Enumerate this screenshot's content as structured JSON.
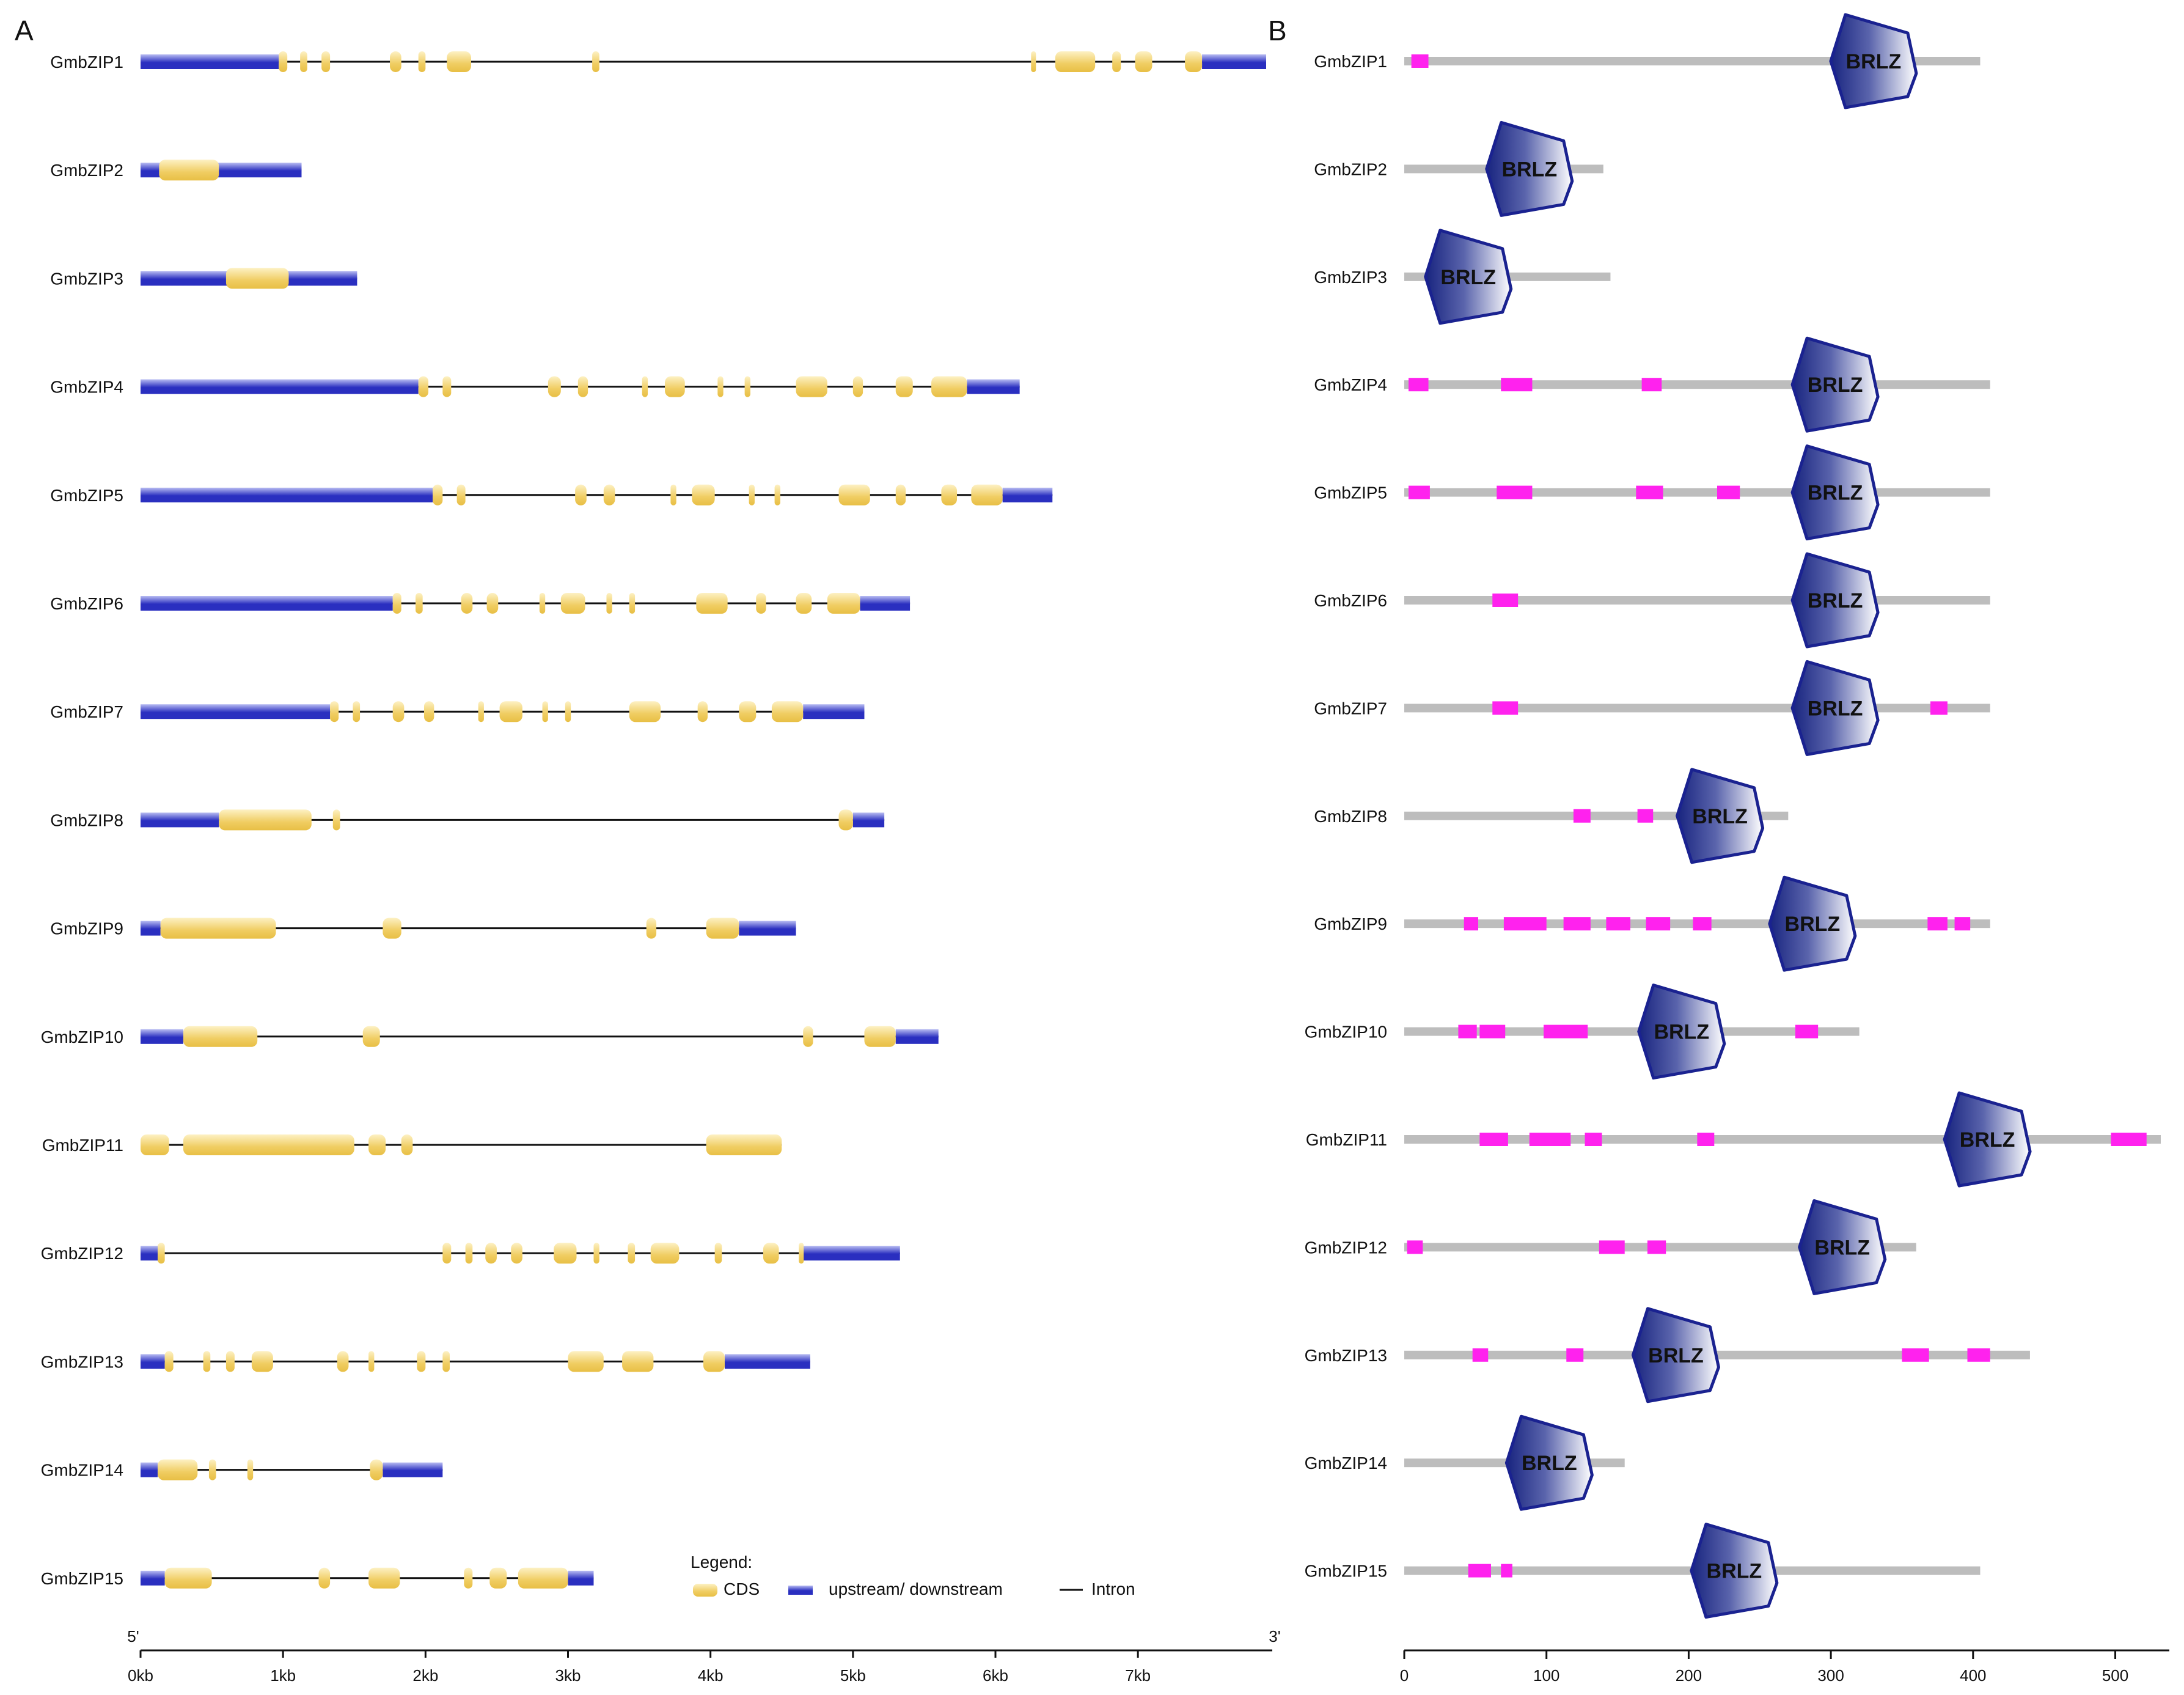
{
  "panels": {
    "a_label": "A",
    "b_label": "B"
  },
  "colors": {
    "cds": "#f0cd62",
    "utr": "#2a2fc0",
    "intron": "#111111",
    "protein_line": "#bdbdbd",
    "motif": "#ff22ee",
    "brlz_fill": "#1a2a8c",
    "brlz_edge": "#1a2290"
  },
  "panel_a": {
    "axis": {
      "five_prime": "5'",
      "three_prime": "3'",
      "range_kb": [
        0,
        7.9
      ],
      "ticks": [
        {
          "kb": 0,
          "label": "0kb"
        },
        {
          "kb": 1,
          "label": "1kb"
        },
        {
          "kb": 2,
          "label": "2kb"
        },
        {
          "kb": 3,
          "label": "3kb"
        },
        {
          "kb": 4,
          "label": "4kb"
        },
        {
          "kb": 5,
          "label": "5kb"
        },
        {
          "kb": 6,
          "label": "6kb"
        },
        {
          "kb": 7,
          "label": "7kb"
        }
      ]
    },
    "legend": {
      "title": "Legend:",
      "cds_label": "CDS",
      "utr_label": "upstream/ downstream",
      "intron_label": "Intron"
    },
    "genes": [
      {
        "name": "GmbZIP1",
        "utr": [
          [
            0,
            0.97
          ],
          [
            7.45,
            7.9
          ]
        ],
        "span": [
          0,
          7.9
        ],
        "cds": [
          [
            0.97,
            1.03
          ],
          [
            1.12,
            1.17
          ],
          [
            1.27,
            1.33
          ],
          [
            1.75,
            1.83
          ],
          [
            1.95,
            2.0
          ],
          [
            2.15,
            2.32
          ],
          [
            3.17,
            3.22
          ],
          [
            6.25,
            6.28
          ],
          [
            6.42,
            6.7
          ],
          [
            6.82,
            6.88
          ],
          [
            6.98,
            7.1
          ],
          [
            7.33,
            7.45
          ]
        ]
      },
      {
        "name": "GmbZIP2",
        "utr": [
          [
            0,
            1.13
          ]
        ],
        "span": [
          0,
          1.13
        ],
        "cds": [
          [
            0.13,
            0.55
          ]
        ]
      },
      {
        "name": "GmbZIP3",
        "utr": [
          [
            0,
            1.52
          ]
        ],
        "span": [
          0,
          1.52
        ],
        "cds": [
          [
            0.6,
            1.04
          ]
        ]
      },
      {
        "name": "GmbZIP4",
        "utr": [
          [
            0,
            1.95
          ],
          [
            5.8,
            6.17
          ]
        ],
        "span": [
          0,
          6.17
        ],
        "cds": [
          [
            1.95,
            2.02
          ],
          [
            2.12,
            2.18
          ],
          [
            2.86,
            2.95
          ],
          [
            3.07,
            3.14
          ],
          [
            3.52,
            3.56
          ],
          [
            3.68,
            3.82
          ],
          [
            4.05,
            4.09
          ],
          [
            4.24,
            4.28
          ],
          [
            4.6,
            4.82
          ],
          [
            5.0,
            5.07
          ],
          [
            5.3,
            5.42
          ],
          [
            5.55,
            5.8
          ]
        ]
      },
      {
        "name": "GmbZIP5",
        "utr": [
          [
            0,
            2.05
          ],
          [
            6.05,
            6.4
          ]
        ],
        "span": [
          0,
          6.4
        ],
        "cds": [
          [
            2.05,
            2.12
          ],
          [
            2.22,
            2.28
          ],
          [
            3.05,
            3.13
          ],
          [
            3.25,
            3.33
          ],
          [
            3.72,
            3.76
          ],
          [
            3.87,
            4.03
          ],
          [
            4.27,
            4.31
          ],
          [
            4.45,
            4.49
          ],
          [
            4.9,
            5.12
          ],
          [
            5.3,
            5.37
          ],
          [
            5.62,
            5.73
          ],
          [
            5.83,
            6.05
          ]
        ]
      },
      {
        "name": "GmbZIP6",
        "utr": [
          [
            0,
            1.77
          ],
          [
            5.05,
            5.4
          ]
        ],
        "span": [
          0,
          5.4
        ],
        "cds": [
          [
            1.77,
            1.83
          ],
          [
            1.93,
            1.98
          ],
          [
            2.25,
            2.33
          ],
          [
            2.43,
            2.51
          ],
          [
            2.8,
            2.84
          ],
          [
            2.95,
            3.12
          ],
          [
            3.27,
            3.31
          ],
          [
            3.43,
            3.47
          ],
          [
            3.9,
            4.12
          ],
          [
            4.32,
            4.39
          ],
          [
            4.6,
            4.71
          ],
          [
            4.82,
            5.05
          ]
        ]
      },
      {
        "name": "GmbZIP7",
        "utr": [
          [
            0,
            1.33
          ],
          [
            4.65,
            5.08
          ]
        ],
        "span": [
          0,
          5.08
        ],
        "cds": [
          [
            1.33,
            1.39
          ],
          [
            1.49,
            1.54
          ],
          [
            1.77,
            1.85
          ],
          [
            1.99,
            2.06
          ],
          [
            2.37,
            2.41
          ],
          [
            2.52,
            2.68
          ],
          [
            2.82,
            2.86
          ],
          [
            2.98,
            3.02
          ],
          [
            3.43,
            3.65
          ],
          [
            3.91,
            3.98
          ],
          [
            4.2,
            4.32
          ],
          [
            4.43,
            4.65
          ]
        ]
      },
      {
        "name": "GmbZIP8",
        "utr": [
          [
            0,
            0.55
          ],
          [
            5.0,
            5.22
          ]
        ],
        "span": [
          0,
          5.22
        ],
        "cds": [
          [
            0.55,
            1.2
          ],
          [
            1.35,
            1.4
          ],
          [
            4.9,
            5.0
          ]
        ]
      },
      {
        "name": "GmbZIP9",
        "utr": [
          [
            0,
            0.14
          ],
          [
            4.2,
            4.6
          ]
        ],
        "span": [
          0,
          4.6
        ],
        "cds": [
          [
            0.14,
            0.95
          ],
          [
            1.7,
            1.83
          ],
          [
            3.55,
            3.62
          ],
          [
            3.97,
            4.2
          ]
        ]
      },
      {
        "name": "GmbZIP10",
        "utr": [
          [
            0,
            0.3
          ],
          [
            5.3,
            5.6
          ]
        ],
        "span": [
          0,
          5.6
        ],
        "cds": [
          [
            0.3,
            0.82
          ],
          [
            1.56,
            1.68
          ],
          [
            4.65,
            4.72
          ],
          [
            5.08,
            5.3
          ]
        ]
      },
      {
        "name": "GmbZIP11",
        "utr": [],
        "span": [
          0,
          4.5
        ],
        "cds": [
          [
            0,
            0.2
          ],
          [
            0.3,
            1.5
          ],
          [
            1.6,
            1.72
          ],
          [
            1.83,
            1.91
          ],
          [
            3.97,
            4.5
          ]
        ]
      },
      {
        "name": "GmbZIP12",
        "utr": [
          [
            0,
            0.15
          ],
          [
            4.65,
            5.33
          ]
        ],
        "span": [
          0,
          5.33
        ],
        "cds": [
          [
            0.12,
            0.17
          ],
          [
            2.12,
            2.18
          ],
          [
            2.28,
            2.33
          ],
          [
            2.42,
            2.5
          ],
          [
            2.6,
            2.68
          ],
          [
            2.9,
            3.06
          ],
          [
            3.18,
            3.22
          ],
          [
            3.42,
            3.47
          ],
          [
            3.58,
            3.78
          ],
          [
            4.03,
            4.08
          ],
          [
            4.37,
            4.48
          ],
          [
            4.62,
            4.65
          ]
        ]
      },
      {
        "name": "GmbZIP13",
        "utr": [
          [
            0,
            0.17
          ],
          [
            4.1,
            4.7
          ]
        ],
        "span": [
          0,
          4.7
        ],
        "cds": [
          [
            0.17,
            0.23
          ],
          [
            0.44,
            0.49
          ],
          [
            0.6,
            0.66
          ],
          [
            0.78,
            0.93
          ],
          [
            1.38,
            1.46
          ],
          [
            1.6,
            1.64
          ],
          [
            1.94,
            2.0
          ],
          [
            2.12,
            2.17
          ],
          [
            3.0,
            3.25
          ],
          [
            3.38,
            3.6
          ],
          [
            3.95,
            4.1
          ]
        ]
      },
      {
        "name": "GmbZIP14",
        "utr": [
          [
            0,
            0.12
          ],
          [
            1.7,
            2.12
          ]
        ],
        "span": [
          0,
          2.12
        ],
        "cds": [
          [
            0.12,
            0.4
          ],
          [
            0.48,
            0.53
          ],
          [
            0.75,
            0.79
          ],
          [
            1.61,
            1.7
          ]
        ]
      },
      {
        "name": "GmbZIP15",
        "utr": [
          [
            0,
            0.17
          ],
          [
            3.0,
            3.18
          ]
        ],
        "span": [
          0,
          3.18
        ],
        "cds": [
          [
            0.17,
            0.5
          ],
          [
            1.25,
            1.33
          ],
          [
            1.6,
            1.82
          ],
          [
            2.27,
            2.33
          ],
          [
            2.45,
            2.57
          ],
          [
            2.65,
            3.0
          ]
        ]
      }
    ]
  },
  "panel_b": {
    "axis": {
      "range_aa": [
        0,
        532
      ],
      "ticks": [
        {
          "aa": 0,
          "label": "0"
        },
        {
          "aa": 100,
          "label": "100"
        },
        {
          "aa": 200,
          "label": "200"
        },
        {
          "aa": 300,
          "label": "300"
        },
        {
          "aa": 400,
          "label": "400"
        },
        {
          "aa": 500,
          "label": "500"
        }
      ]
    },
    "domain_label": "BRLZ",
    "proteins": [
      {
        "name": "GmbZIP1",
        "length": 405,
        "domain": 330,
        "motifs": [
          [
            5,
            17
          ]
        ]
      },
      {
        "name": "GmbZIP2",
        "length": 140,
        "domain": 88,
        "motifs": []
      },
      {
        "name": "GmbZIP3",
        "length": 145,
        "domain": 45,
        "motifs": []
      },
      {
        "name": "GmbZIP4",
        "length": 412,
        "domain": 303,
        "motifs": [
          [
            3,
            17
          ],
          [
            68,
            90
          ],
          [
            167,
            181
          ]
        ]
      },
      {
        "name": "GmbZIP5",
        "length": 412,
        "domain": 303,
        "motifs": [
          [
            3,
            18
          ],
          [
            65,
            90
          ],
          [
            163,
            182
          ],
          [
            220,
            236
          ]
        ]
      },
      {
        "name": "GmbZIP6",
        "length": 412,
        "domain": 303,
        "motifs": [
          [
            62,
            80
          ]
        ]
      },
      {
        "name": "GmbZIP7",
        "length": 412,
        "domain": 303,
        "motifs": [
          [
            62,
            80
          ],
          [
            370,
            382
          ]
        ]
      },
      {
        "name": "GmbZIP8",
        "length": 270,
        "domain": 222,
        "motifs": [
          [
            119,
            131
          ],
          [
            164,
            175
          ]
        ]
      },
      {
        "name": "GmbZIP9",
        "length": 412,
        "domain": 287,
        "motifs": [
          [
            42,
            52
          ],
          [
            70,
            100
          ],
          [
            112,
            131
          ],
          [
            142,
            159
          ],
          [
            170,
            187
          ],
          [
            203,
            216
          ],
          [
            368,
            382
          ],
          [
            387,
            398
          ]
        ]
      },
      {
        "name": "GmbZIP10",
        "length": 320,
        "domain": 195,
        "motifs": [
          [
            38,
            51
          ],
          [
            53,
            71
          ],
          [
            98,
            129
          ],
          [
            275,
            291
          ]
        ]
      },
      {
        "name": "GmbZIP11",
        "length": 532,
        "domain": 410,
        "motifs": [
          [
            53,
            73
          ],
          [
            88,
            117
          ],
          [
            127,
            139
          ],
          [
            206,
            218
          ],
          [
            497,
            522
          ]
        ]
      },
      {
        "name": "GmbZIP12",
        "length": 360,
        "domain": 308,
        "motifs": [
          [
            2,
            13
          ],
          [
            137,
            155
          ],
          [
            171,
            184
          ]
        ]
      },
      {
        "name": "GmbZIP13",
        "length": 440,
        "domain": 191,
        "motifs": [
          [
            48,
            59
          ],
          [
            114,
            126
          ],
          [
            350,
            369
          ],
          [
            396,
            412
          ]
        ]
      },
      {
        "name": "GmbZIP14",
        "length": 155,
        "domain": 102,
        "motifs": []
      },
      {
        "name": "GmbZIP15",
        "length": 405,
        "domain": 232,
        "motifs": [
          [
            45,
            61
          ],
          [
            68,
            76
          ]
        ]
      }
    ]
  }
}
